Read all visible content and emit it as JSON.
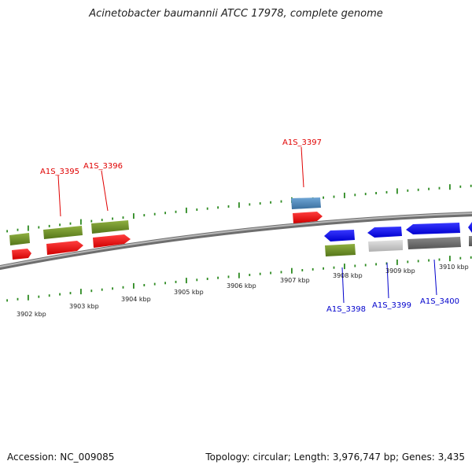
{
  "title": "Acinetobacter baumannii ATCC 17978, complete genome",
  "footer": {
    "accession": "Accession: NC_009085",
    "topology": "Topology: circular; Length: 3,976,747 bp; Genes: 3,435"
  },
  "colors": {
    "forward_label": "#e00000",
    "reverse_label": "#0000cc",
    "ticks": "#2e8b22",
    "backbone": "#8c8c8c",
    "green": "#6b8e23",
    "red": "#ff0000",
    "steelblue": "#4682b4",
    "blue": "#0000ff",
    "lightgray": "#c8c8c8",
    "darkgray": "#6b6b6b"
  },
  "kbp_labels": [
    "3902 kbp",
    "3903 kbp",
    "3904 kbp",
    "3905 kbp",
    "3906 kbp",
    "3907 kbp",
    "3908 kbp",
    "3909 kbp",
    "3910 kbp"
  ],
  "gene_labels": [
    {
      "text": "A1S_3395",
      "strand": "forward"
    },
    {
      "text": "A1S_3396",
      "strand": "forward"
    },
    {
      "text": "A1S_3397",
      "strand": "forward"
    },
    {
      "text": "A1S_3398",
      "strand": "reverse"
    },
    {
      "text": "A1S_3399",
      "strand": "reverse"
    },
    {
      "text": "A1S_3400",
      "strand": "reverse"
    }
  ]
}
